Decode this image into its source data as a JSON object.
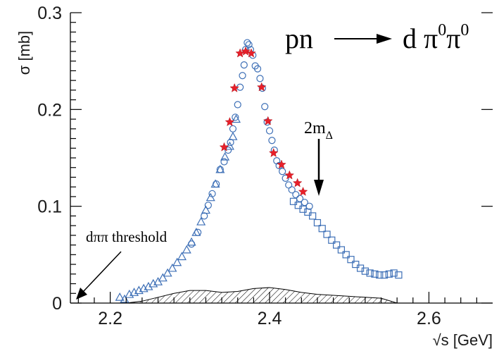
{
  "chart_data": {
    "type": "scatter",
    "title": "",
    "xlabel": "√s [GeV]",
    "ylabel": "σ [mb]",
    "xlim": [
      2.15,
      2.68
    ],
    "ylim": [
      0,
      0.3
    ],
    "x_ticks": [
      2.2,
      2.4,
      2.6
    ],
    "x_tick_labels": [
      "2.2",
      "2.4",
      "2.6"
    ],
    "y_ticks": [
      0,
      0.1,
      0.2,
      0.3
    ],
    "y_tick_labels": [
      "0",
      "0.1",
      "0.2",
      "0.3"
    ],
    "grid": false,
    "reaction": {
      "initial": "pn",
      "final_text": "d π",
      "final_sup1": "0",
      "final_pi": "π",
      "final_sup2": "0"
    },
    "annotations": {
      "threshold_label": "dππ  threshold",
      "threshold_x": 2.155,
      "two_m_delta_base": "2m",
      "two_m_delta_sub": "Δ",
      "two_m_delta_x": 2.44,
      "two_m_delta_y": 0.112
    },
    "series": [
      {
        "marker": "triangle",
        "color": "#3d6fb6",
        "points": [
          [
            2.212,
            0.006
          ],
          [
            2.218,
            0.004
          ],
          [
            2.224,
            0.009
          ],
          [
            2.23,
            0.011
          ],
          [
            2.236,
            0.013
          ],
          [
            2.242,
            0.015
          ],
          [
            2.248,
            0.017
          ],
          [
            2.254,
            0.02
          ],
          [
            2.26,
            0.022
          ],
          [
            2.266,
            0.026
          ],
          [
            2.272,
            0.031
          ],
          [
            2.278,
            0.036
          ],
          [
            2.284,
            0.042
          ],
          [
            2.29,
            0.048
          ],
          [
            2.296,
            0.055
          ],
          [
            2.302,
            0.063
          ],
          [
            2.308,
            0.073
          ],
          [
            2.314,
            0.084
          ],
          [
            2.32,
            0.096
          ],
          [
            2.326,
            0.109
          ],
          [
            2.332,
            0.123
          ],
          [
            2.338,
            0.138
          ],
          [
            2.344,
            0.151
          ],
          [
            2.35,
            0.162
          ],
          [
            2.354,
            0.172
          ],
          [
            2.358,
            0.19
          ]
        ]
      },
      {
        "marker": "circle",
        "color": "#3d6fb6",
        "points": [
          [
            2.302,
            0.061
          ],
          [
            2.31,
            0.073
          ],
          [
            2.318,
            0.09
          ],
          [
            2.323,
            0.101
          ],
          [
            2.328,
            0.113
          ],
          [
            2.333,
            0.123
          ],
          [
            2.338,
            0.138
          ],
          [
            2.343,
            0.146
          ],
          [
            2.348,
            0.158
          ],
          [
            2.351,
            0.166
          ],
          [
            2.354,
            0.18
          ],
          [
            2.357,
            0.192
          ],
          [
            2.36,
            0.205
          ],
          [
            2.363,
            0.223
          ],
          [
            2.366,
            0.235
          ],
          [
            2.368,
            0.246
          ],
          [
            2.37,
            0.262
          ],
          [
            2.372,
            0.269
          ],
          [
            2.374,
            0.267
          ],
          [
            2.376,
            0.262
          ],
          [
            2.379,
            0.256
          ],
          [
            2.382,
            0.245
          ],
          [
            2.385,
            0.242
          ],
          [
            2.388,
            0.232
          ],
          [
            2.391,
            0.222
          ],
          [
            2.394,
            0.203
          ],
          [
            2.397,
            0.187
          ],
          [
            2.4,
            0.178
          ],
          [
            2.403,
            0.168
          ],
          [
            2.406,
            0.158
          ],
          [
            2.409,
            0.147
          ],
          [
            2.412,
            0.142
          ],
          [
            2.416,
            0.136
          ],
          [
            2.42,
            0.129
          ],
          [
            2.424,
            0.122
          ],
          [
            2.428,
            0.117
          ],
          [
            2.433,
            0.112
          ],
          [
            2.438,
            0.108
          ],
          [
            2.444,
            0.104
          ],
          [
            2.45,
            0.1
          ]
        ]
      },
      {
        "marker": "square",
        "color": "#3d6fb6",
        "points": [
          [
            2.43,
            0.105
          ],
          [
            2.436,
            0.101
          ],
          [
            2.442,
            0.097
          ],
          [
            2.448,
            0.094
          ],
          [
            2.454,
            0.09
          ],
          [
            2.46,
            0.083
          ],
          [
            2.466,
            0.077
          ],
          [
            2.472,
            0.071
          ],
          [
            2.478,
            0.065
          ],
          [
            2.484,
            0.06
          ],
          [
            2.49,
            0.055
          ],
          [
            2.496,
            0.05
          ],
          [
            2.502,
            0.045
          ],
          [
            2.508,
            0.04
          ],
          [
            2.514,
            0.036
          ],
          [
            2.52,
            0.033
          ],
          [
            2.526,
            0.031
          ],
          [
            2.532,
            0.03
          ],
          [
            2.538,
            0.029
          ],
          [
            2.544,
            0.029
          ],
          [
            2.55,
            0.03
          ],
          [
            2.556,
            0.031
          ],
          [
            2.562,
            0.029
          ]
        ]
      },
      {
        "marker": "star",
        "color": "#e8202a",
        "points": [
          [
            2.343,
            0.161
          ],
          [
            2.35,
            0.187
          ],
          [
            2.356,
            0.222
          ],
          [
            2.363,
            0.258
          ],
          [
            2.37,
            0.26
          ],
          [
            2.377,
            0.258
          ],
          [
            2.39,
            0.223
          ],
          [
            2.398,
            0.188
          ],
          [
            2.405,
            0.155
          ],
          [
            2.415,
            0.143
          ],
          [
            2.425,
            0.132
          ],
          [
            2.435,
            0.124
          ],
          [
            2.442,
            0.115
          ]
        ]
      },
      {
        "marker": "hatched-area",
        "color": "#000000",
        "points": [
          [
            2.22,
            0.0
          ],
          [
            2.24,
            0.002
          ],
          [
            2.26,
            0.006
          ],
          [
            2.28,
            0.01
          ],
          [
            2.3,
            0.013
          ],
          [
            2.32,
            0.013
          ],
          [
            2.34,
            0.011
          ],
          [
            2.36,
            0.012
          ],
          [
            2.38,
            0.015
          ],
          [
            2.4,
            0.016
          ],
          [
            2.42,
            0.014
          ],
          [
            2.44,
            0.011
          ],
          [
            2.46,
            0.009
          ],
          [
            2.48,
            0.008
          ],
          [
            2.5,
            0.007
          ],
          [
            2.52,
            0.006
          ],
          [
            2.54,
            0.005
          ],
          [
            2.56,
            0.0
          ]
        ]
      }
    ]
  }
}
